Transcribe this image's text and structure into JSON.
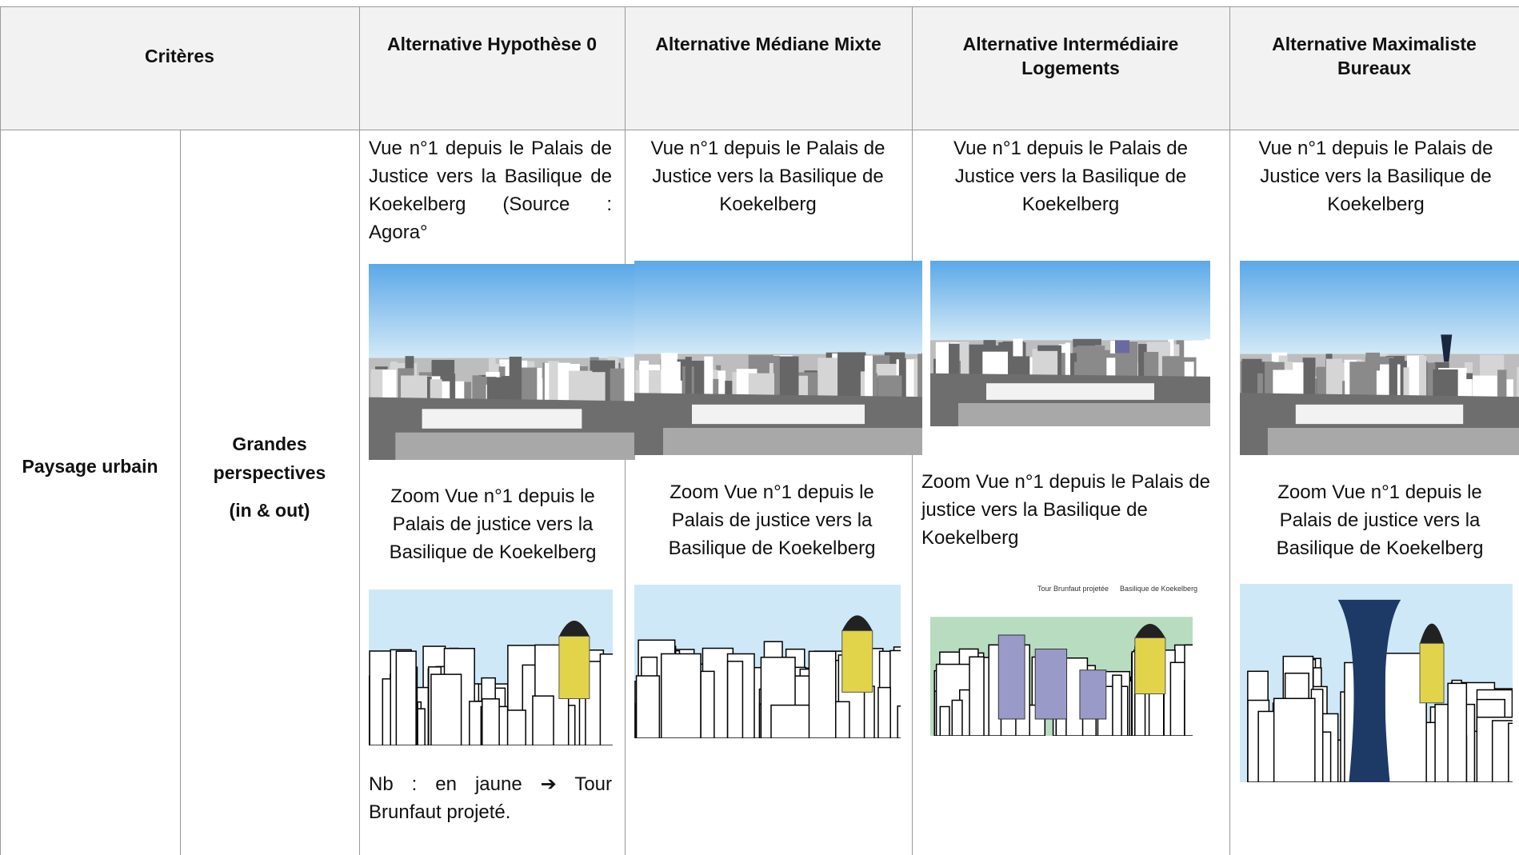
{
  "header": {
    "criteria": "Critères",
    "alternatives": [
      "Alternative Hypothèse 0",
      "Alternative Médiane Mixte",
      "Alternative Intermédiaire Logements",
      "Alternative Maximaliste Bureaux"
    ]
  },
  "row": {
    "theme": "Paysage urbain",
    "criterion": "Grandes perspectives",
    "criterion_note": "(in & out)"
  },
  "cells": [
    {
      "view": "Vue n°1 depuis le Palais de Justice vers la Basilique de Koekelberg (Source : Agora°",
      "zoom": "Zoom Vue n°1 depuis le Palais de justice vers la Basilique de Koekelberg",
      "note": "Nb : en jaune ➔ Tour Brunfaut projeté."
    },
    {
      "view": "Vue n°1 depuis le Palais de Justice vers la Basilique de Koekelberg",
      "zoom": "Zoom Vue n°1 depuis le Palais de justice vers la Basilique de Koekelberg"
    },
    {
      "view": "Vue n°1 depuis le Palais de Justice vers la Basilique de Koekelberg",
      "zoom": "Zoom Vue n°1 depuis le Palais de justice vers la Basilique de Koekelberg"
    },
    {
      "view": "Vue n°1 depuis le Palais de Justice vers la Basilique de Koekelberg",
      "zoom": "Zoom Vue n°1 depuis le Palais de justice vers la Basilique de Koekelberg"
    }
  ],
  "annotations": {
    "tower": "Tour Brunfaut projetée",
    "basilica": "Basilique de Koekelberg"
  }
}
